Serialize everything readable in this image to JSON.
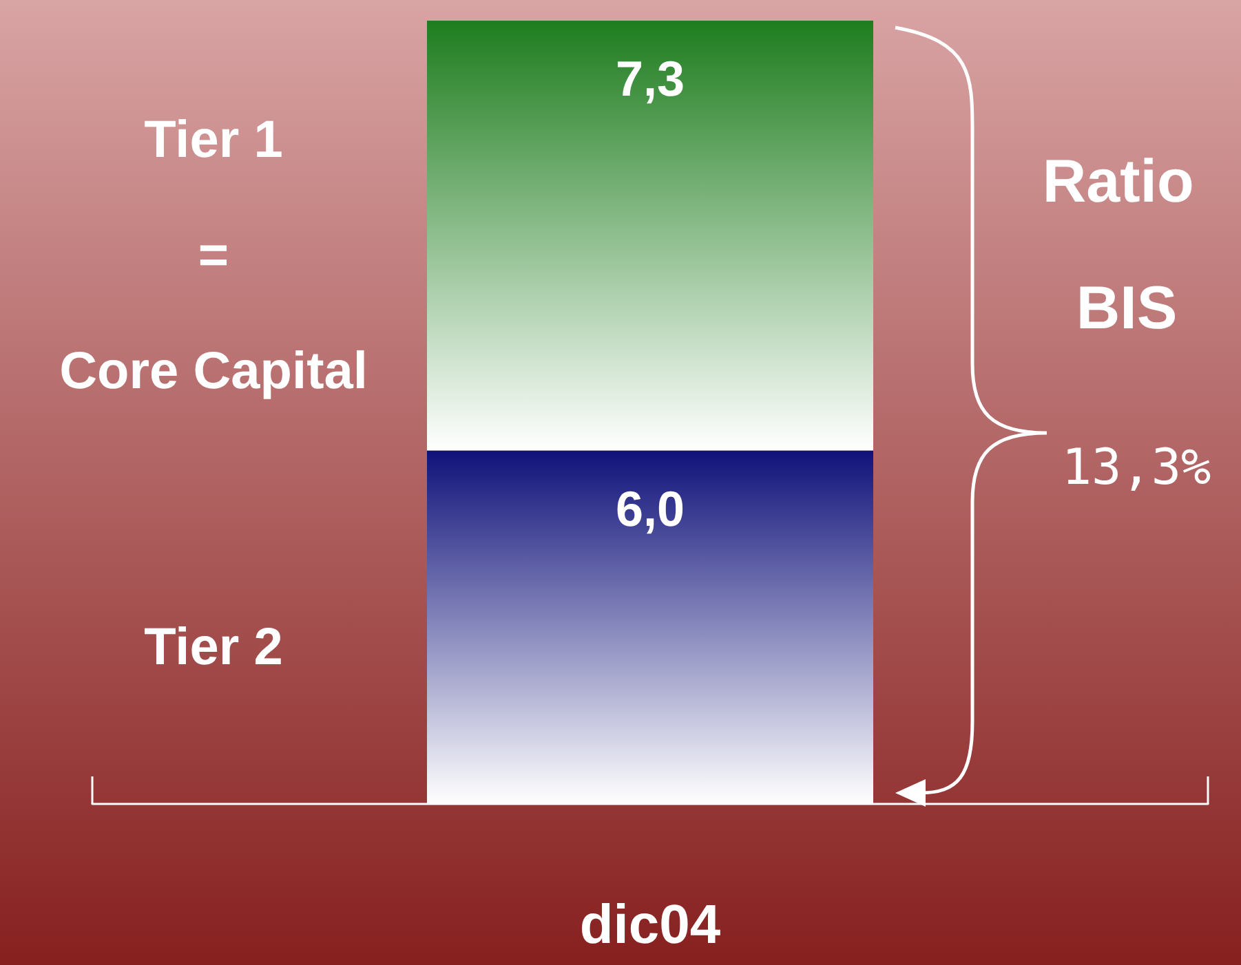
{
  "chart_data": {
    "type": "bar",
    "stacked": true,
    "categories": [
      "dic04"
    ],
    "series": [
      {
        "name": "Tier 2",
        "color": "#10127a",
        "values": [
          6.0
        ],
        "value_labels": [
          "6,0"
        ]
      },
      {
        "name": "Tier 1\n=\nCore Capital",
        "color": "#1e7d1e",
        "values": [
          7.3
        ],
        "value_labels": [
          "7,3"
        ]
      }
    ],
    "annotations": [
      "Ratio BIS",
      "13,3%"
    ]
  }
}
